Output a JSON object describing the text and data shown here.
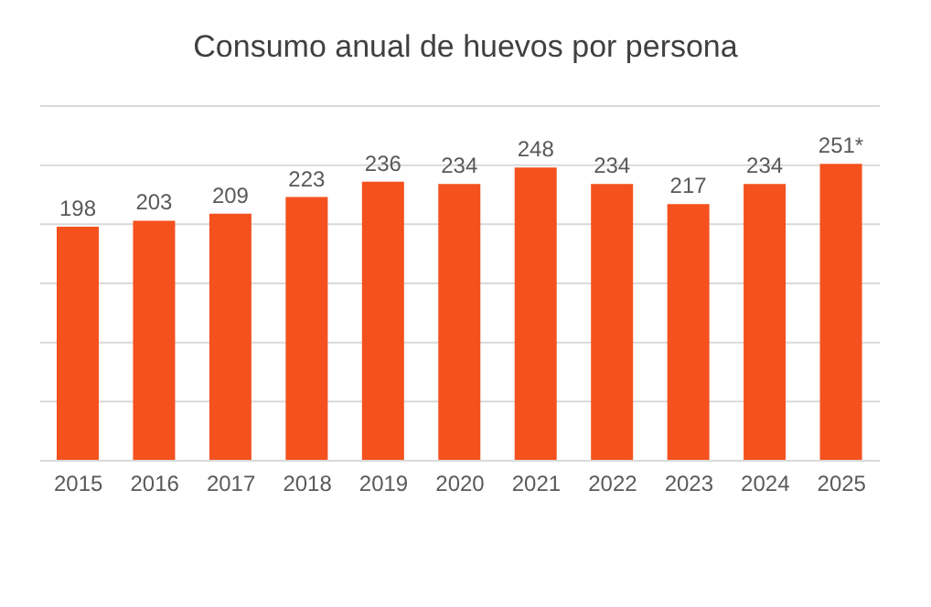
{
  "chart_data": {
    "type": "bar",
    "title": "Consumo anual de huevos por persona",
    "categories": [
      "2015",
      "2016",
      "2017",
      "2018",
      "2019",
      "2020",
      "2021",
      "2022",
      "2023",
      "2024",
      "2025"
    ],
    "values": [
      198,
      203,
      209,
      223,
      236,
      234,
      248,
      234,
      217,
      234,
      251
    ],
    "value_labels": [
      "198",
      "203",
      "209",
      "223",
      "236",
      "234",
      "248",
      "234",
      "217",
      "234",
      "251*"
    ],
    "color": "#f4511e",
    "ylim": [
      0,
      300
    ],
    "yticks": [
      {
        "value": 0,
        "label": null
      },
      {
        "value": 50,
        "label": null
      },
      {
        "value": 100,
        "label": null
      },
      {
        "value": 150,
        "label": null
      },
      {
        "value": 200,
        "label": null
      },
      {
        "value": 250,
        "label": null
      },
      {
        "value": 300,
        "label": null
      }
    ],
    "grid": "y",
    "tick_labels": "x"
  }
}
